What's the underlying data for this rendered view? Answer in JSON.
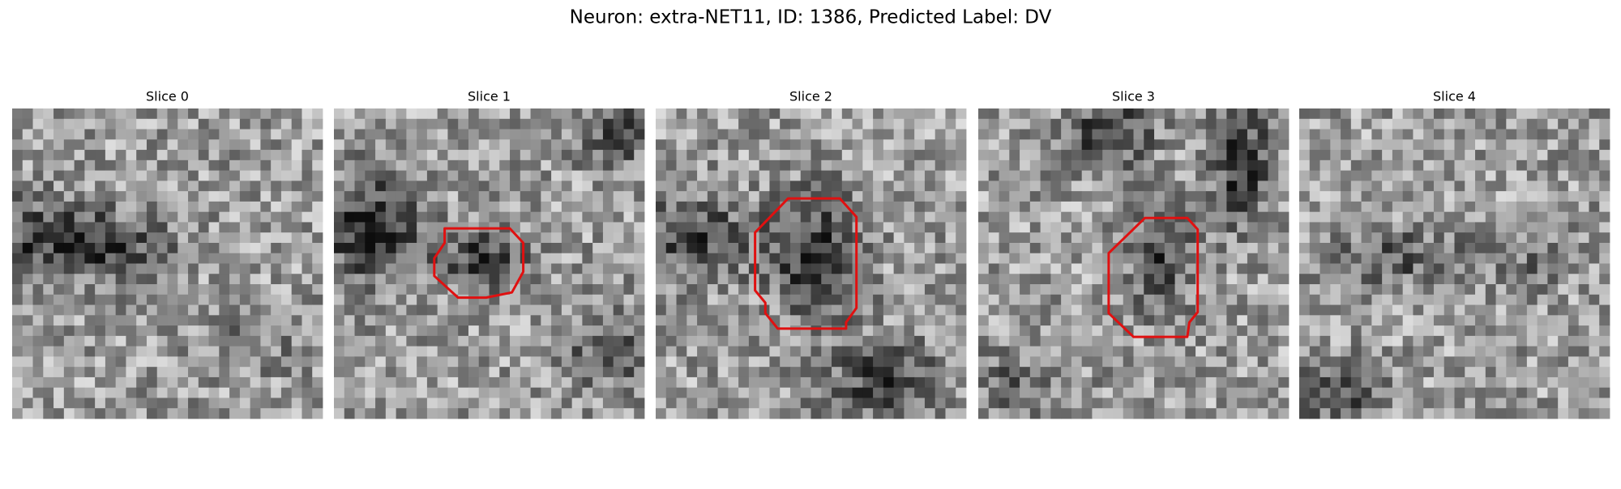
{
  "figure": {
    "title": "Neuron: extra-NET11, ID: 1386, Predicted Label: DV",
    "panels": [
      {
        "title": "Slice 0"
      },
      {
        "title": "Slice 1"
      },
      {
        "title": "Slice 2"
      },
      {
        "title": "Slice 3"
      },
      {
        "title": "Slice 4"
      }
    ]
  }
}
